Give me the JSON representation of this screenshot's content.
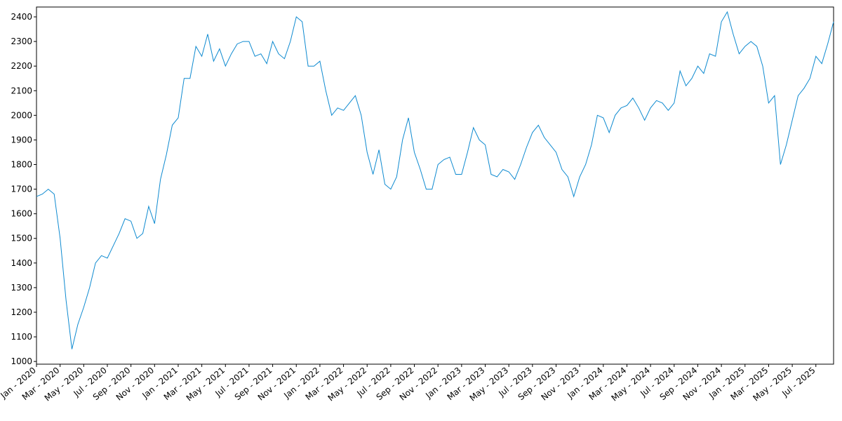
{
  "chart_data": {
    "type": "line",
    "categories": [
      "Jan - 2020",
      null,
      null,
      null,
      "Mar - 2020",
      null,
      null,
      null,
      "May - 2020",
      null,
      null,
      null,
      "Jul - 2020",
      null,
      null,
      null,
      "Sep - 2020",
      null,
      null,
      null,
      "Nov - 2020",
      null,
      null,
      null,
      "Jan - 2021",
      null,
      null,
      null,
      "Mar - 2021",
      null,
      null,
      null,
      "May - 2021",
      null,
      null,
      null,
      "Jul - 2021",
      null,
      null,
      null,
      "Sep - 2021",
      null,
      null,
      null,
      "Nov - 2021",
      null,
      null,
      null,
      "Jan - 2022",
      null,
      null,
      null,
      "Mar - 2022",
      null,
      null,
      null,
      "May - 2022",
      null,
      null,
      null,
      "Jul - 2022",
      null,
      null,
      null,
      "Sep - 2022",
      null,
      null,
      null,
      "Nov - 2022",
      null,
      null,
      null,
      "Jan - 2023",
      null,
      null,
      null,
      "Mar - 2023",
      null,
      null,
      null,
      "May - 2023",
      null,
      null,
      null,
      "Jul - 2023",
      null,
      null,
      null,
      "Sep - 2023",
      null,
      null,
      null,
      "Nov - 2023",
      null,
      null,
      null,
      "Jan - 2024",
      null,
      null,
      null,
      "Mar - 2024",
      null,
      null,
      null,
      "May - 2024",
      null,
      null,
      null,
      "Jul - 2024",
      null,
      null,
      null,
      "Sep - 2024",
      null,
      null,
      null,
      "Nov - 2024",
      null,
      null,
      null,
      "Jan - 2025",
      null,
      null,
      null,
      "Mar - 2025",
      null,
      null,
      null,
      "May - 2025",
      null,
      null,
      null,
      "Jul - 2025",
      null,
      null,
      null
    ],
    "series": [
      {
        "color": "#0e8ad0",
        "values": [
          1670,
          1680,
          1700,
          1680,
          1500,
          1250,
          1050,
          1150,
          1220,
          1300,
          1400,
          1430,
          1420,
          1470,
          1520,
          1580,
          1570,
          1500,
          1520,
          1630,
          1560,
          1740,
          1840,
          1960,
          1990,
          2150,
          2150,
          2280,
          2240,
          2330,
          2220,
          2270,
          2200,
          2250,
          2290,
          2300,
          2300,
          2240,
          2250,
          2210,
          2300,
          2250,
          2230,
          2300,
          2400,
          2380,
          2200,
          2200,
          2220,
          2100,
          2000,
          2030,
          2020,
          2050,
          2080,
          2000,
          1850,
          1760,
          1860,
          1720,
          1700,
          1750,
          1900,
          1990,
          1850,
          1780,
          1700,
          1700,
          1800,
          1820,
          1830,
          1760,
          1760,
          1850,
          1950,
          1900,
          1880,
          1760,
          1750,
          1780,
          1770,
          1740,
          1800,
          1870,
          1930,
          1960,
          1910,
          1880,
          1850,
          1780,
          1750,
          1670,
          1750,
          1800,
          1880,
          2000,
          1990,
          1930,
          2000,
          2030,
          2040,
          2070,
          2030,
          1980,
          2030,
          2060,
          2050,
          2020,
          2050,
          2180,
          2120,
          2150,
          2200,
          2170,
          2250,
          2240,
          2380,
          2420,
          2330,
          2250,
          2280,
          2300,
          2280,
          2200,
          2050,
          2080,
          1800,
          1880,
          1980,
          2080,
          2110,
          2150,
          2240,
          2210,
          2290,
          2380
        ]
      }
    ],
    "ylim": [
      989,
      2440
    ],
    "yticks": [
      1000,
      1100,
      1200,
      1300,
      1400,
      1500,
      1600,
      1700,
      1800,
      1900,
      2000,
      2100,
      2200,
      2300,
      2400
    ]
  }
}
